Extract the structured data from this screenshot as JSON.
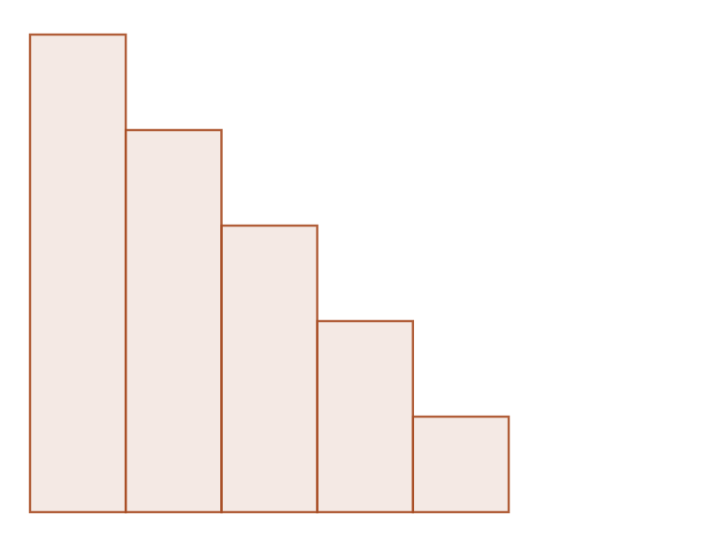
{
  "chart_data": {
    "type": "bar",
    "values": [
      5,
      4,
      3,
      2,
      1
    ],
    "color": "#a84e25",
    "ylim": [
      0,
      5
    ]
  }
}
